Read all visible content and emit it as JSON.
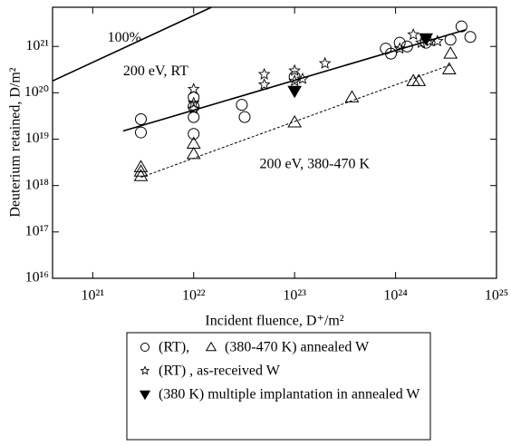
{
  "chart_data": {
    "type": "scatter",
    "xlabel": "Incident fluence, D⁺/m²",
    "ylabel": "Deuterium retained, D/m²",
    "log_x": true,
    "log_y": true,
    "xlim": [
      4e+20,
      1e+25
    ],
    "ylim": [
      1e+16,
      7e+21
    ],
    "xticks": [
      {
        "value": 1e+21,
        "label": "10²¹"
      },
      {
        "value": 1e+22,
        "label": "10²²"
      },
      {
        "value": 1e+23,
        "label": "10²³"
      },
      {
        "value": 1e+24,
        "label": "10²⁴"
      },
      {
        "value": 1e+25,
        "label": "10²⁵"
      }
    ],
    "yticks": [
      {
        "value": 1e+16,
        "label": "10¹⁶"
      },
      {
        "value": 1e+17,
        "label": "10¹⁷"
      },
      {
        "value": 1e+18,
        "label": "10¹⁸"
      },
      {
        "value": 1e+19,
        "label": "10¹⁹"
      },
      {
        "value": 1e+20,
        "label": "10²⁰"
      },
      {
        "value": 1e+21,
        "label": "10²¹"
      }
    ],
    "series": [
      {
        "name": "(RT),",
        "marker": "circle",
        "color": "#000000",
        "x": [
          3e+21,
          3e+21,
          1e+22,
          1e+22,
          1e+22,
          1e+22,
          3e+22,
          3.2e+22,
          1e+23,
          8e+23,
          9e+23,
          1.1e+24,
          1.3e+24,
          2e+24,
          3.5e+24,
          4.5e+24,
          5.5e+24
        ],
        "values": [
          2.7e+19,
          1.4e+19,
          8e+19,
          5e+19,
          3e+19,
          1.3e+19,
          5.5e+19,
          3e+19,
          2.2e+20,
          9e+20,
          7e+20,
          1.2e+21,
          1e+21,
          1.2e+21,
          1.4e+21,
          2.7e+21,
          1.6e+21
        ]
      },
      {
        "name": "(380-470 K) annealed W",
        "marker": "triangle",
        "color": "#000000",
        "x": [
          3e+21,
          3e+21,
          3e+21,
          1e+22,
          1e+22,
          1e+23,
          3.7e+23,
          1.5e+24,
          1.7e+24,
          3.5e+24,
          3.4e+24
        ],
        "values": [
          2.5e+18,
          2e+18,
          1.6e+18,
          8e+18,
          4.8e+18,
          2.3e+19,
          8e+19,
          1.8e+20,
          1.8e+20,
          7e+20,
          3.2e+20
        ]
      },
      {
        "name": "(RT) , as-received W",
        "marker": "star",
        "color": "#000000",
        "x": [
          1e+22,
          1e+22,
          1e+22,
          5e+22,
          5e+22,
          1e+23,
          1e+23,
          1.2e+23,
          2e+23,
          1.1e+24,
          1.5e+24,
          1.8e+24,
          2.2e+24,
          2.6e+24
        ],
        "values": [
          1.2e+20,
          6e+19,
          4.5e+19,
          2.5e+20,
          1.5e+20,
          3e+20,
          1.8e+20,
          2e+20,
          4.3e+20,
          9e+20,
          1.8e+21,
          1.2e+21,
          1.3e+21,
          1.3e+21
        ]
      },
      {
        "name": "(380 K) multiple implantation in annealed W",
        "marker": "filled-triangle",
        "color": "#000000",
        "x": [
          1e+23,
          2e+24
        ],
        "values": [
          1.1e+20,
          1.5e+21
        ]
      }
    ],
    "lines": [
      {
        "style": "solid",
        "x": [
          4e+20,
          1.5e+22
        ],
        "values": [
          1.8e+20,
          7e+21
        ]
      },
      {
        "style": "solid",
        "x": [
          2e+21,
          5e+24
        ],
        "values": [
          1.5e+19,
          2.3e+21
        ]
      },
      {
        "style": "dashed",
        "x": [
          3e+21,
          3.5e+24
        ],
        "values": [
          1.5e+18,
          4e+20
        ]
      }
    ],
    "annotations": [
      {
        "text": "100%",
        "x": 1.4e+21,
        "y": 1.5e+21
      },
      {
        "text": "200 eV, RT",
        "x": 2e+21,
        "y": 2.8e+20
      },
      {
        "text": "200 eV, 380-470 K",
        "x": 4.5e+22,
        "y": 2.8e+18
      }
    ]
  }
}
